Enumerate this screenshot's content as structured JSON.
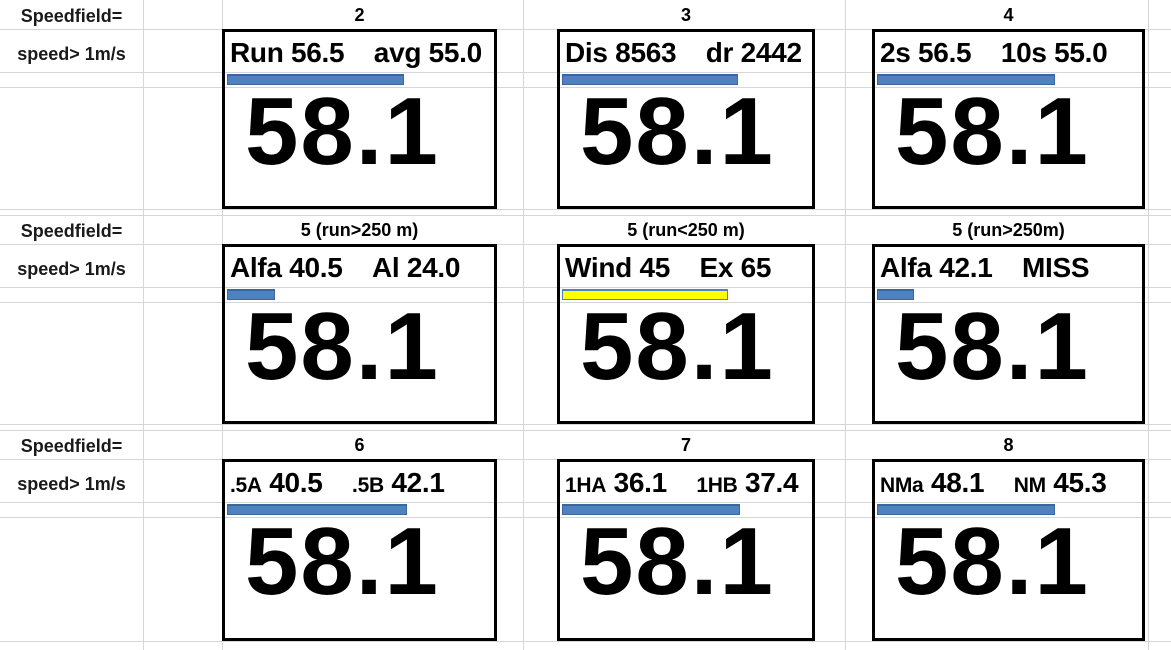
{
  "colors": {
    "bar_blue": "#4E81BD",
    "bar_blue_border": "#3A689B",
    "bar_yellow": "#FFFF00",
    "bar_yellow_border": "#4F81BD",
    "grid": "#D6D6DA"
  },
  "left_labels": {
    "speedfield": "Speedfield=",
    "speed": "speed> 1m/s"
  },
  "panels": [
    {
      "field": "2",
      "l1": "Run",
      "v1": "56.5",
      "l2": "avg",
      "v2": "55.0",
      "big": "58.1",
      "bar_pct": 65,
      "bar_color": "blue",
      "small_labels": false
    },
    {
      "field": "3",
      "l1": "Dis",
      "v1": "8563",
      "l2": "dr",
      "v2": "2442",
      "big": "58.1",
      "bar_pct": 69,
      "bar_color": "blue",
      "small_labels": false
    },
    {
      "field": "4",
      "l1": "2s",
      "v1": "56.5",
      "l2": "10s",
      "v2": "55.0",
      "big": "58.1",
      "bar_pct": 66,
      "bar_color": "blue",
      "small_labels": false
    },
    {
      "field": "5 (run>250 m)",
      "l1": "Alfa",
      "v1": "40.5",
      "l2": "Al",
      "v2": "24.0",
      "big": "58.1",
      "bar_pct": 17,
      "bar_color": "blue",
      "small_labels": false
    },
    {
      "field": "5 (run<250 m)",
      "l1": "Wind",
      "v1": "45",
      "l2": "Ex",
      "v2": "65",
      "big": "58.1",
      "bar_pct": 65,
      "bar_color": "yellow",
      "small_labels": false
    },
    {
      "field": "5 (run>250m)",
      "l1": "Alfa",
      "v1": "42.1",
      "l2": "MISS",
      "v2": "",
      "big": "58.1",
      "bar_pct": 13,
      "bar_color": "blue",
      "small_labels": false
    },
    {
      "field": "6",
      "l1": ".5A",
      "v1": "40.5",
      "l2": ".5B",
      "v2": "42.1",
      "big": "58.1",
      "bar_pct": 66,
      "bar_color": "blue",
      "small_labels": true
    },
    {
      "field": "7",
      "l1": "1HA",
      "v1": "36.1",
      "l2": "1HB",
      "v2": "37.4",
      "big": "58.1",
      "bar_pct": 70,
      "bar_color": "blue",
      "small_labels": true
    },
    {
      "field": "8",
      "l1": "NMa",
      "v1": "48.1",
      "l2": "NM",
      "v2": "45.3",
      "big": "58.1",
      "bar_pct": 66,
      "bar_color": "blue",
      "small_labels": true
    }
  ]
}
